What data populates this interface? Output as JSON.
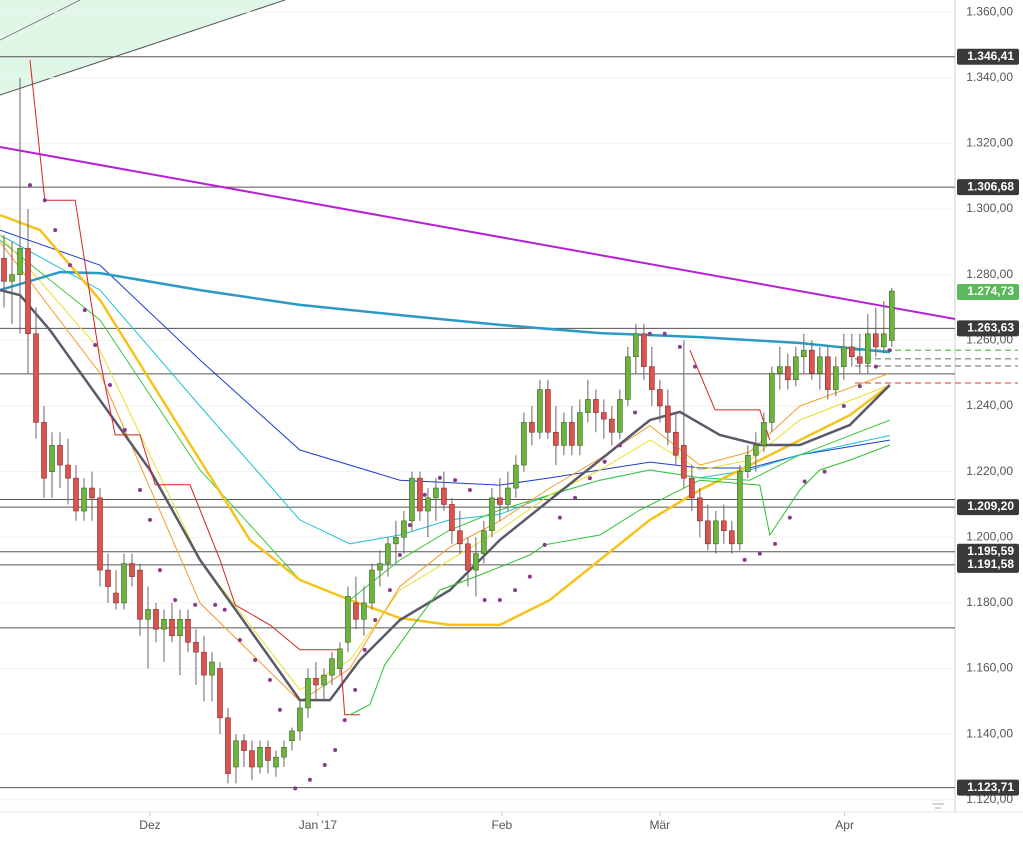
{
  "chart_data": {
    "type": "candlestick",
    "xlim": [
      -0.5,
      118.9
    ],
    "ylim": [
      1116.9,
      1363.7
    ],
    "xticks": [
      {
        "value": 18.25,
        "label": "Dez"
      },
      {
        "value": 39.25,
        "label": "Jan '17"
      },
      {
        "value": 62.25,
        "label": "Feb"
      },
      {
        "value": 82,
        "label": "Mär"
      },
      {
        "value": 105.1,
        "label": "Apr"
      }
    ],
    "yticks": [
      {
        "value": 1120,
        "label": "1.120,00"
      },
      {
        "value": 1140,
        "label": "1.140,00"
      },
      {
        "value": 1160,
        "label": "1.160,00"
      },
      {
        "value": 1180,
        "label": "1.180,00"
      },
      {
        "value": 1200,
        "label": "1.200,00"
      },
      {
        "value": 1220,
        "label": "1.220,00"
      },
      {
        "value": 1240,
        "label": "1.240,00"
      },
      {
        "value": 1260,
        "label": "1.260,00"
      },
      {
        "value": 1280,
        "label": "1.280,00"
      },
      {
        "value": 1300,
        "label": "1.300,00"
      },
      {
        "value": 1320,
        "label": "1.320,00"
      },
      {
        "value": 1340,
        "label": "1.340,00"
      },
      {
        "value": 1360,
        "label": "1.360,00"
      }
    ],
    "up_color": "#6db33f",
    "down_color": "#d9534f",
    "open": [
      1285,
      1278,
      1280,
      1288,
      1262,
      1235,
      1220,
      1228,
      1222,
      1218,
      1208,
      1215,
      1212,
      1190,
      1183,
      1180,
      1192,
      1190,
      1175,
      1178,
      1172,
      1175,
      1170,
      1175,
      1168,
      1165,
      1158,
      1160,
      1145,
      1130,
      1138,
      1135,
      1130,
      1136,
      1130,
      1133,
      1138,
      1141,
      1148,
      1157,
      1155,
      1158,
      1160,
      1168,
      1180,
      1175,
      1180,
      1190,
      1192,
      1198,
      1200,
      1205,
      1218,
      1208,
      1212,
      1215,
      1210,
      1202,
      1198,
      1190,
      1195,
      1202,
      1212,
      1210,
      1215,
      1222,
      1235,
      1232,
      1245,
      1232,
      1228,
      1235,
      1228,
      1238,
      1242,
      1238,
      1236,
      1232,
      1242,
      1255,
      1262,
      1252,
      1245,
      1240,
      1232,
      1228,
      1218,
      1212,
      1205,
      1198,
      1205,
      1202,
      1198,
      1220,
      1225,
      1228,
      1235,
      1250,
      1252,
      1248,
      1255,
      1257,
      1250,
      1255,
      1245,
      1252,
      1258,
      1255,
      1253,
      1262,
      1258,
      1260
    ],
    "high": [
      1292,
      1290,
      1340,
      1300,
      1270,
      1240,
      1232,
      1232,
      1230,
      1222,
      1218,
      1220,
      1215,
      1195,
      1190,
      1195,
      1195,
      1192,
      1185,
      1180,
      1178,
      1180,
      1178,
      1178,
      1172,
      1170,
      1165,
      1162,
      1148,
      1140,
      1140,
      1138,
      1138,
      1138,
      1135,
      1138,
      1142,
      1150,
      1160,
      1162,
      1160,
      1165,
      1168,
      1185,
      1188,
      1185,
      1192,
      1196,
      1200,
      1205,
      1208,
      1220,
      1220,
      1215,
      1218,
      1220,
      1212,
      1208,
      1200,
      1200,
      1205,
      1215,
      1218,
      1220,
      1225,
      1238,
      1240,
      1248,
      1248,
      1240,
      1238,
      1240,
      1242,
      1248,
      1245,
      1242,
      1240,
      1245,
      1258,
      1265,
      1265,
      1258,
      1248,
      1245,
      1238,
      1260,
      1222,
      1215,
      1210,
      1208,
      1210,
      1205,
      1222,
      1228,
      1232,
      1238,
      1252,
      1258,
      1256,
      1258,
      1262,
      1260,
      1258,
      1258,
      1255,
      1262,
      1262,
      1262,
      1268,
      1270,
      1272,
      1276
    ],
    "low": [
      1270,
      1265,
      1262,
      1250,
      1230,
      1212,
      1212,
      1215,
      1210,
      1205,
      1205,
      1205,
      1185,
      1180,
      1178,
      1178,
      1185,
      1170,
      1160,
      1168,
      1162,
      1168,
      1158,
      1165,
      1155,
      1150,
      1150,
      1140,
      1125,
      1125,
      1130,
      1126,
      1128,
      1128,
      1127,
      1130,
      1135,
      1138,
      1145,
      1150,
      1150,
      1155,
      1158,
      1165,
      1172,
      1170,
      1178,
      1185,
      1188,
      1192,
      1195,
      1202,
      1205,
      1200,
      1205,
      1208,
      1198,
      1195,
      1185,
      1182,
      1192,
      1200,
      1205,
      1208,
      1212,
      1220,
      1228,
      1230,
      1230,
      1222,
      1225,
      1225,
      1225,
      1235,
      1232,
      1230,
      1228,
      1230,
      1240,
      1250,
      1248,
      1240,
      1235,
      1228,
      1222,
      1215,
      1208,
      1200,
      1196,
      1195,
      1198,
      1195,
      1196,
      1218,
      1220,
      1226,
      1232,
      1245,
      1245,
      1246,
      1250,
      1248,
      1245,
      1242,
      1243,
      1248,
      1252,
      1250,
      1250,
      1255,
      1256,
      1258
    ],
    "close": [
      1278,
      1280,
      1288,
      1262,
      1235,
      1218,
      1228,
      1222,
      1218,
      1208,
      1215,
      1212,
      1190,
      1185,
      1180,
      1192,
      1188,
      1175,
      1178,
      1172,
      1175,
      1170,
      1175,
      1168,
      1165,
      1158,
      1162,
      1145,
      1128,
      1138,
      1135,
      1130,
      1136,
      1132,
      1133,
      1136,
      1141,
      1148,
      1157,
      1155,
      1158,
      1163,
      1166,
      1182,
      1175,
      1180,
      1190,
      1192,
      1198,
      1200,
      1205,
      1218,
      1208,
      1212,
      1215,
      1210,
      1202,
      1198,
      1190,
      1195,
      1202,
      1212,
      1210,
      1215,
      1222,
      1235,
      1232,
      1245,
      1232,
      1228,
      1235,
      1228,
      1238,
      1242,
      1238,
      1236,
      1232,
      1242,
      1255,
      1262,
      1252,
      1245,
      1240,
      1232,
      1225,
      1218,
      1212,
      1205,
      1198,
      1205,
      1202,
      1198,
      1220,
      1225,
      1228,
      1235,
      1250,
      1252,
      1248,
      1255,
      1257,
      1250,
      1255,
      1245,
      1252,
      1258,
      1255,
      1253,
      1262,
      1258,
      1262,
      1275
    ],
    "overlays": [
      {
        "color": "#1f3fc8",
        "width": 1,
        "x": [
          -0.5,
          12,
          24.5,
          37,
          49.5,
          62,
          68.25,
          74.5,
          80.75,
          87,
          93.25,
          99.5,
          110.75
        ],
        "values": [
          1293.6,
          1282.9,
          1254.0,
          1226.6,
          1217.4,
          1215.9,
          1218.1,
          1220.5,
          1222.9,
          1221.1,
          1221.1,
          1225.1,
          1229.6
        ]
      },
      {
        "color": "#20c0d0",
        "width": 1,
        "x": [
          -0.5,
          12,
          24.5,
          37,
          43.25,
          49.5,
          55.75,
          62,
          68.25,
          74.5,
          80.75,
          87,
          93.25,
          99.5,
          110.75
        ],
        "values": [
          1292.1,
          1275.3,
          1240,
          1205.3,
          1198,
          1200.7,
          1205.3,
          1207,
          1212.9,
          1217.4,
          1220.5,
          1218.1,
          1220.5,
          1225.1,
          1231
        ]
      },
      {
        "color": "#3cc83c",
        "width": 1,
        "x": [
          -0.5,
          12,
          24.5,
          37,
          43.25,
          49.5,
          55.75,
          62,
          68.25,
          74.5,
          80.75,
          87,
          93.25,
          99.5,
          110.75
        ],
        "values": [
          1290.6,
          1266.2,
          1220.5,
          1187.0,
          1180.9,
          1193.1,
          1202.2,
          1208.3,
          1212.9,
          1217.4,
          1220.5,
          1218.1,
          1217.4,
          1225.1,
          1235.7
        ]
      },
      {
        "color": "#e8e030",
        "width": 1,
        "x": [
          -0.5,
          12,
          24.5,
          37,
          43.25,
          49.5,
          55.75,
          62,
          68.25,
          74.5,
          80.75,
          87,
          93.25,
          99.5,
          110.75
        ],
        "values": [
          1292.1,
          1257.0,
          1193.1,
          1153.5,
          1162.6,
          1183.9,
          1193.1,
          1202.2,
          1212.9,
          1220.5,
          1229.6,
          1220.5,
          1223.5,
          1235.7,
          1246.4
        ]
      },
      {
        "color": "#f39a2b",
        "width": 1,
        "x": [
          -0.5,
          12,
          24.5,
          37,
          43.25,
          49.5,
          55.75,
          62,
          68.25,
          74.5,
          80.75,
          87,
          93.25,
          99.5,
          110.75
        ],
        "values": [
          1290,
          1250,
          1180,
          1150,
          1160,
          1185,
          1197,
          1205,
          1215,
          1224,
          1234,
          1222,
          1226,
          1240,
          1250
        ]
      },
      {
        "color": "#2b9ac4",
        "width": 2.5,
        "x": [
          -0.5,
          7,
          12,
          24.5,
          37,
          49.5,
          62,
          74.5,
          87,
          99.5,
          110.75
        ],
        "values": [
          1275.3,
          1280.8,
          1280.5,
          1275.3,
          1270.8,
          1267.7,
          1264.7,
          1262.2,
          1261.0,
          1259.2,
          1256.4
        ]
      },
      {
        "color": "#f7c21a",
        "width": 2.5,
        "x": [
          -0.5,
          4.5,
          12,
          18.25,
          24.5,
          30.75,
          37,
          43.25,
          49.5,
          55.75,
          62,
          68.25,
          74.5,
          80.75,
          87,
          93.25,
          99.5,
          105.75,
          110.75
        ],
        "values": [
          1298.2,
          1293.6,
          1272.3,
          1247.9,
          1223.5,
          1199.2,
          1187.0,
          1180.9,
          1175.4,
          1173.3,
          1173.3,
          1180.9,
          1193.1,
          1205.3,
          1214.4,
          1222.0,
          1229.6,
          1237.2,
          1246.4
        ]
      },
      {
        "color": "#5a5a6a",
        "width": 2.5,
        "x": [
          -0.5,
          2,
          5.75,
          12,
          18.25,
          24.5,
          30.75,
          37,
          40.75,
          44.5,
          49.5,
          55.75,
          62,
          68.25,
          74.5,
          80.75,
          84.5,
          89.5,
          94.5,
          99.5,
          105.75,
          110.75
        ],
        "values": [
          1275.3,
          1273.8,
          1263.1,
          1241.8,
          1220.5,
          1193.1,
          1171.8,
          1150.4,
          1150.4,
          1162.6,
          1174.8,
          1183.9,
          1199.2,
          1211.4,
          1223.5,
          1235.7,
          1238.2,
          1231.2,
          1228.1,
          1228.1,
          1234.2,
          1246.4
        ]
      },
      {
        "color": "#d42424",
        "width": 1,
        "x": [
          3.25,
          5.1,
          8.9,
          12,
          13.9,
          17,
          18.9,
          23.25,
          27,
          28.9,
          33.25,
          37,
          42,
          42.6,
          44.5
        ],
        "values": [
          1345.4,
          1302.7,
          1302.7,
          1254.0,
          1231.2,
          1231.2,
          1216.0,
          1216.0,
          1193.1,
          1179.4,
          1173.3,
          1165.7,
          1165.7,
          1145.9,
          1145.9
        ]
      },
      {
        "color": "#d42424",
        "width": 1,
        "x": [
          85.75,
          88.9,
          94.5,
          95.75
        ],
        "values": [
          1257.0,
          1238.8,
          1238.8,
          1229.6
        ]
      },
      {
        "color": "#2ec02e",
        "width": 1,
        "x": [
          43.25,
          45.75,
          47.6,
          50.75,
          54.5,
          59.5,
          65.75,
          67.6,
          74.5,
          79.5,
          87,
          94.5,
          95.75,
          99.5,
          102,
          105.75,
          110.75
        ],
        "values": [
          1145.9,
          1149,
          1161.1,
          1171.8,
          1183.9,
          1188.5,
          1194.6,
          1197.7,
          1200.7,
          1208.3,
          1217.4,
          1215.9,
          1200.7,
          1214.4,
          1220.5,
          1223.5,
          1228.1
        ]
      },
      {
        "color": "#b81fd6",
        "width": 2,
        "x": [
          -0.5,
          118.9
        ],
        "values": [
          1318.9,
          1266.5
        ]
      }
    ],
    "sar": {
      "color": "#8a3a8a",
      "x": [
        3.25,
        5.1,
        6.4,
        8.25,
        10.1,
        11.4,
        13.25,
        15.1,
        17,
        18.25,
        19.5,
        21.4,
        23.9,
        26.4,
        27.6,
        29.5,
        31.4,
        33.25,
        34.5,
        36.4,
        38.25,
        40.1,
        41.4,
        42.6,
        43.9,
        45.1,
        46.4,
        48.25,
        49.5,
        50.75,
        52.6,
        54.5,
        56.4,
        58.25,
        60.1,
        62,
        63.9,
        65.75,
        67.6,
        69.5,
        71.4,
        73.25,
        75.1,
        77,
        78.9,
        80.75,
        82.6,
        84.5,
        86.4,
        92.6,
        94.5,
        96.4,
        98.25,
        100.1,
        102.6,
        105,
        107,
        109,
        110.75
      ],
      "values": [
        1307.3,
        1302.7,
        1293.6,
        1282.9,
        1269.2,
        1258.6,
        1246.4,
        1232.7,
        1214.4,
        1205.3,
        1190,
        1180.9,
        1179.4,
        1179.4,
        1177.9,
        1168.7,
        1162.6,
        1156.5,
        1147.4,
        1123.5,
        1126.1,
        1130.6,
        1135.2,
        1144.3,
        1153.5,
        1165.7,
        1174.8,
        1183.9,
        1194.6,
        1203.7,
        1212.9,
        1218.1,
        1217.4,
        1214.4,
        1180.9,
        1180.9,
        1183.9,
        1188,
        1197.7,
        1206,
        1212,
        1218,
        1223,
        1228,
        1238,
        1262,
        1262,
        1258,
        1252,
        1193.1,
        1195,
        1198,
        1206,
        1217,
        1220,
        1240,
        1246,
        1252,
        1257
      ]
    },
    "levels": [
      1249.8,
      1211.5,
      1172.4
    ],
    "dashed_levels": [
      {
        "value": 1257.0,
        "color": "#7bc96f"
      },
      {
        "value": 1254.4,
        "color": "#999999"
      },
      {
        "value": 1252.2,
        "color": "#999999"
      },
      {
        "value": 1247.0,
        "color": "#e07a7a"
      }
    ],
    "price_labels": [
      {
        "value": 1346.41,
        "label": "1.346,41",
        "color": "#3a3a3a",
        "line": true
      },
      {
        "value": 1306.68,
        "label": "1.306,68",
        "color": "#3a3a3a",
        "line": true
      },
      {
        "value": 1274.73,
        "label": "1.274,73",
        "color": "#5cb85c",
        "line": false
      },
      {
        "value": 1263.63,
        "label": "1.263,63",
        "color": "#3a3a3a",
        "line": true
      },
      {
        "value": 1209.2,
        "label": "1.209,20",
        "color": "#3a3a3a",
        "line": true
      },
      {
        "value": 1195.59,
        "label": "1.195,59",
        "color": "#3a3a3a",
        "line": true
      },
      {
        "value": 1191.58,
        "label": "1.191,58",
        "color": "#3a3a3a",
        "line": true
      },
      {
        "value": 1123.71,
        "label": "1.123,71",
        "color": "#3a3a3a",
        "line": true
      }
    ]
  }
}
